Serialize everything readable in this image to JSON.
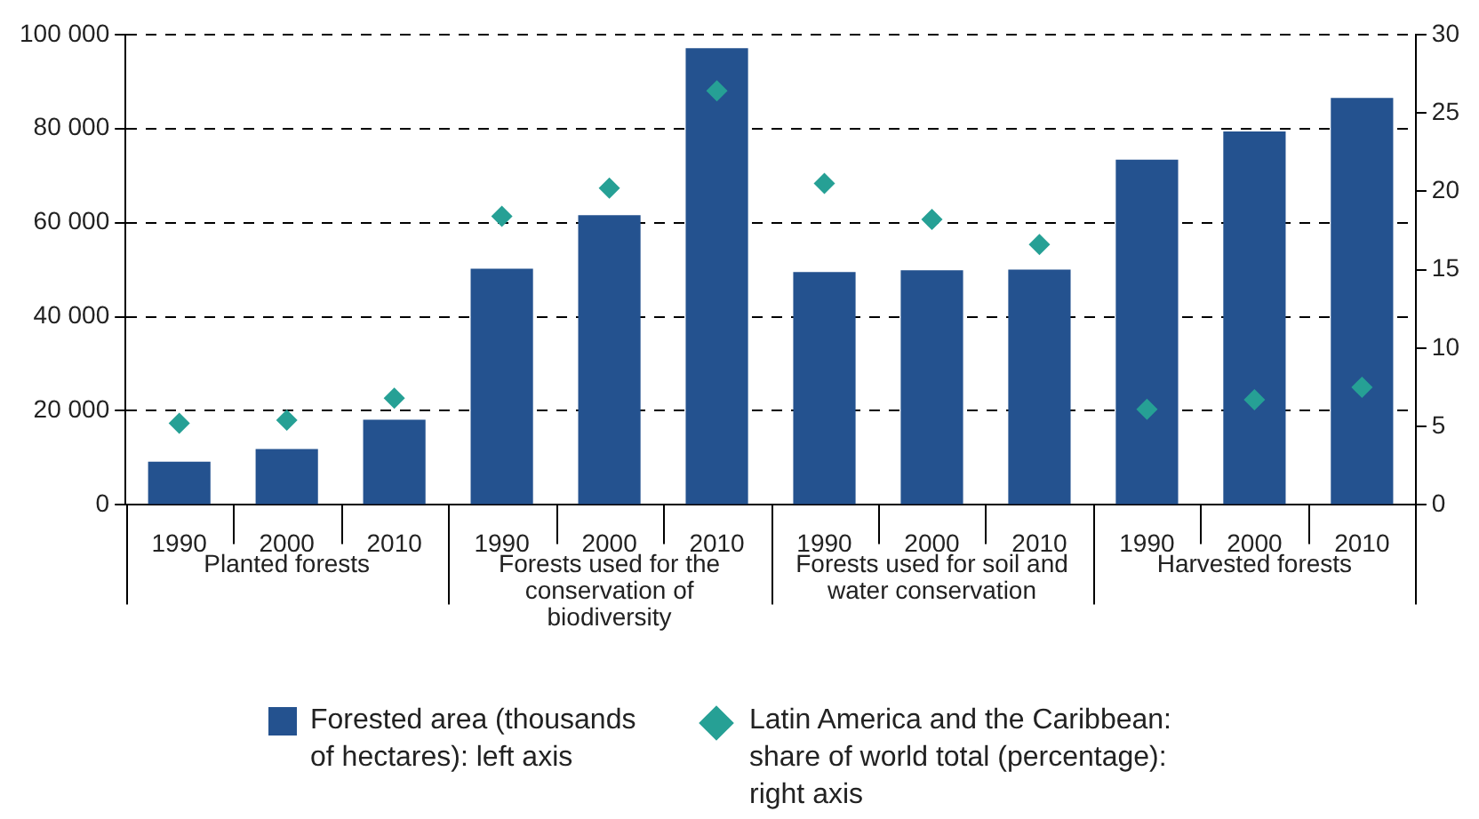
{
  "chart_data": {
    "type": "bar",
    "categories": [
      "1990",
      "2000",
      "2010",
      "1990",
      "2000",
      "2010",
      "1990",
      "2000",
      "2010",
      "1990",
      "2000",
      "2010"
    ],
    "series": [
      {
        "name": "Forested area (thousands of hectares): left axis",
        "color": "#24528f",
        "values": [
          9200,
          11900,
          18100,
          50200,
          61600,
          97100,
          49500,
          49900,
          50000,
          73400,
          79400,
          86500
        ]
      },
      {
        "name": "Latin America and the Caribbean: share of world total (percentage): right axis",
        "type": "scatter",
        "axis": "y2",
        "color": "#26a095",
        "values": [
          5.2,
          5.4,
          6.8,
          18.4,
          20.2,
          26.4,
          20.5,
          18.2,
          16.6,
          6.1,
          6.7,
          7.5
        ]
      }
    ],
    "annotations": [
      "Planted forests",
      "Forests used for the conservation of biodiversity",
      "Forests used for soil and water conservation",
      "Harvested forests"
    ],
    "ylim": [
      0,
      100000
    ],
    "yticks": [
      {
        "value": 0,
        "label": "0"
      },
      {
        "value": 20000,
        "label": "20 000"
      },
      {
        "value": 40000,
        "label": "40 000"
      },
      {
        "value": 60000,
        "label": "60 000"
      },
      {
        "value": 80000,
        "label": "80 000"
      },
      {
        "value": 100000,
        "label": "100 000"
      }
    ],
    "y2lim": [
      0,
      30
    ],
    "y2ticks": [
      0,
      5,
      10,
      15,
      20,
      25,
      30
    ],
    "grid": "y",
    "marker": "diamond",
    "legend": "bottom"
  }
}
